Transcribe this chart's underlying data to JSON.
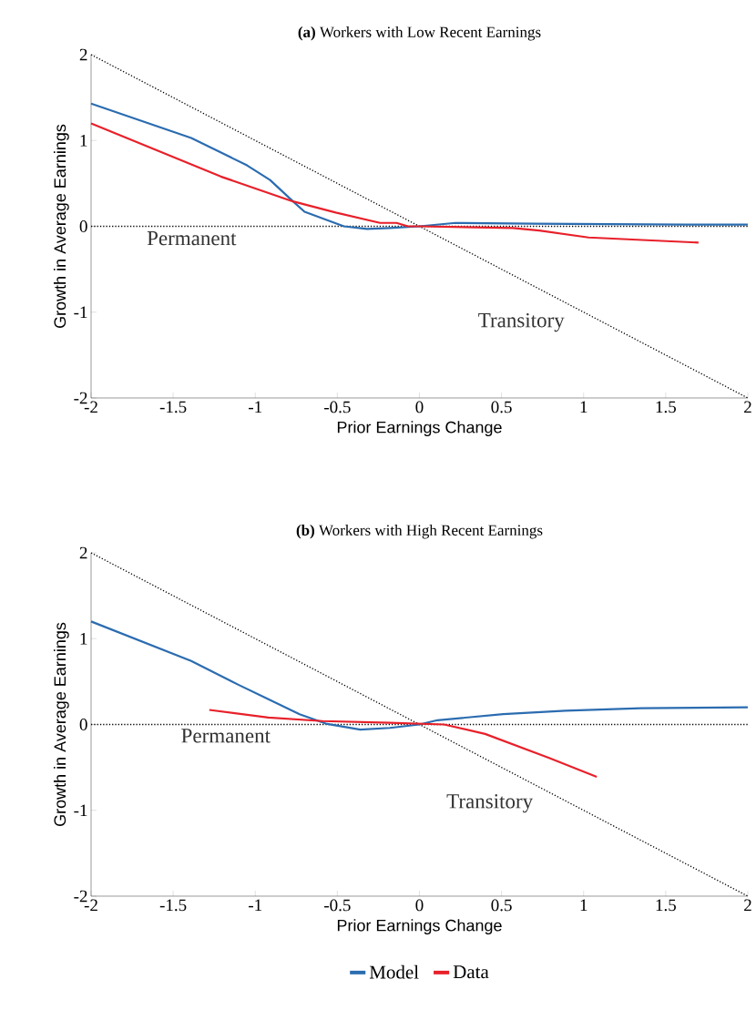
{
  "chart_data": [
    {
      "type": "line",
      "title": "**(a)** Workers with Low Recent Earnings",
      "xlabel": "Prior Earnings Change",
      "ylabel": "Growth in Average Earnings",
      "xlim": [
        -2,
        2
      ],
      "ylim": [
        -2,
        2
      ],
      "xticks": [
        -2,
        -1.5,
        -1,
        -0.5,
        0,
        0.5,
        1,
        1.5,
        2
      ],
      "yticks": [
        -2,
        -1,
        0,
        1,
        2
      ],
      "grid": false,
      "legend": false,
      "series": [
        {
          "color": "#000000",
          "line_style": "dotted",
          "x": [
            -2,
            2
          ],
          "values": [
            2,
            -2
          ]
        },
        {
          "color": "#2b6cb0",
          "line_style": "solid",
          "x": [
            -2,
            -1.39,
            -1.05,
            -0.91,
            -0.77,
            -0.7,
            -0.46,
            -0.32,
            -0.18,
            0,
            0.22,
            0.7,
            1.62,
            2
          ],
          "values": [
            1.43,
            1.03,
            0.71,
            0.54,
            0.29,
            0.17,
            0,
            -0.03,
            -0.02,
            0,
            0.04,
            0.03,
            0.02,
            0.02
          ]
        },
        {
          "color": "#e8202a",
          "line_style": "solid",
          "x": [
            -2,
            -1.21,
            -0.77,
            -0.51,
            -0.24,
            -0.14,
            -0.07,
            0,
            0.57,
            0.73,
            1.03,
            1.7
          ],
          "values": [
            1.2,
            0.58,
            0.29,
            0.16,
            0.04,
            0.04,
            0,
            0,
            -0.02,
            -0.05,
            -0.13,
            -0.19
          ]
        }
      ],
      "ref_lines": [
        {
          "axis": "y",
          "value": 0,
          "color": "#000000",
          "line_style": "dotted"
        }
      ],
      "annotations": [
        "Permanent",
        "Transitory"
      ]
    },
    {
      "type": "line",
      "title": "**(b)** Workers with High Recent Earnings",
      "xlabel": "Prior Earnings Change",
      "ylabel": "Growth in Average Earnings",
      "xlim": [
        -2,
        2
      ],
      "ylim": [
        -2,
        2
      ],
      "xticks": [
        -2,
        -1.5,
        -1,
        -0.5,
        0,
        0.5,
        1,
        1.5,
        2
      ],
      "yticks": [
        -2,
        -1,
        0,
        1,
        2
      ],
      "grid": false,
      "legend": "bottom",
      "series": [
        {
          "color": "#000000",
          "line_style": "dotted",
          "x": [
            -2,
            2
          ],
          "values": [
            2,
            -2
          ]
        },
        {
          "name": "Model",
          "color": "#2b6cb0",
          "line_style": "solid",
          "x": [
            -2,
            -1.39,
            -1.1,
            -0.73,
            -0.57,
            -0.36,
            -0.18,
            0,
            0.11,
            0.51,
            0.89,
            1.35,
            2
          ],
          "values": [
            1.2,
            0.74,
            0.46,
            0.12,
            0.01,
            -0.06,
            -0.04,
            0,
            0.05,
            0.12,
            0.16,
            0.19,
            0.2
          ]
        },
        {
          "name": "Data",
          "color": "#e8202a",
          "line_style": "solid",
          "x": [
            -1.28,
            -0.92,
            -0.59,
            -0.18,
            0.15,
            0.4,
            0.79,
            1.08
          ],
          "values": [
            0.17,
            0.08,
            0.04,
            0.02,
            0,
            -0.11,
            -0.39,
            -0.61
          ]
        }
      ],
      "ref_lines": [
        {
          "axis": "y",
          "value": 0,
          "color": "#000000",
          "line_style": "dotted"
        }
      ],
      "annotations": [
        "Permanent",
        "Transitory"
      ]
    }
  ]
}
